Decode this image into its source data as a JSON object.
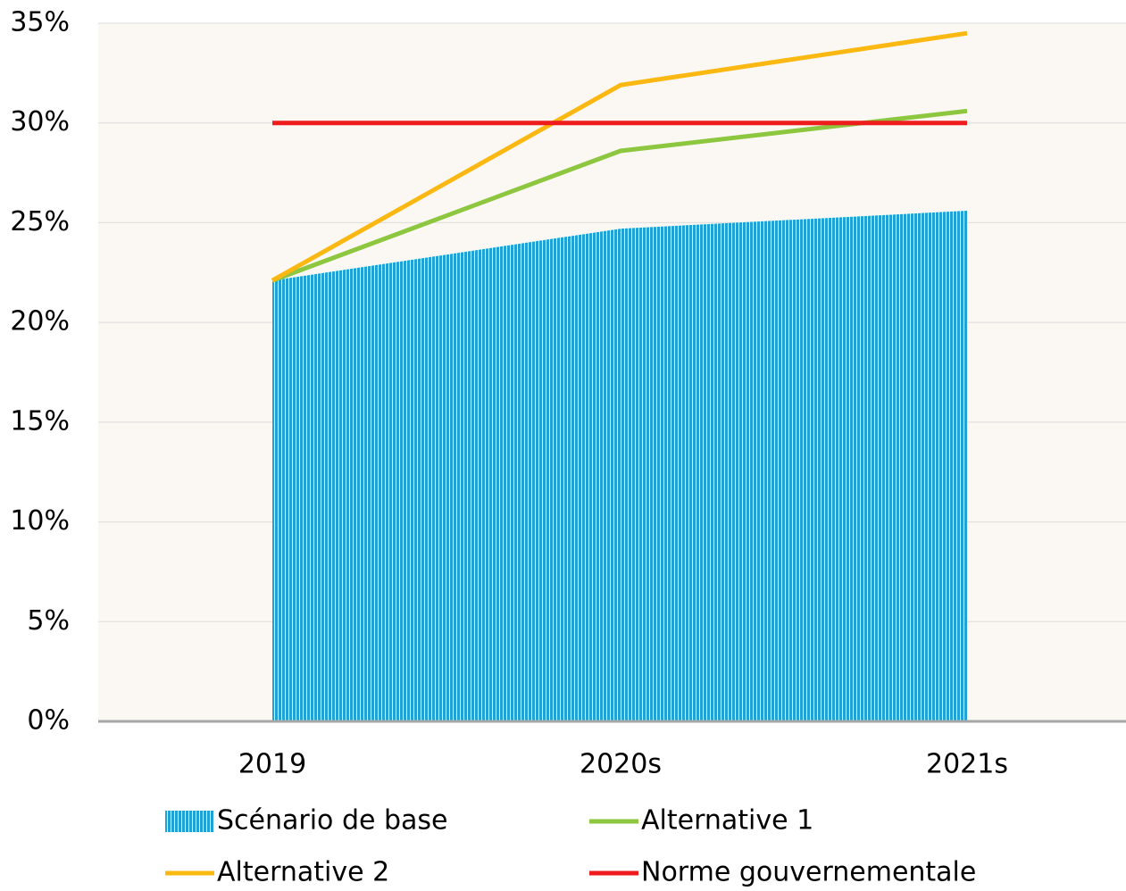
{
  "chart_data": {
    "type": "line",
    "categories": [
      "2019",
      "2020s",
      "2021s"
    ],
    "series": [
      {
        "name": "Scénario de base",
        "kind": "area",
        "color": "#1fa3d6",
        "values": [
          22.1,
          24.7,
          25.6
        ]
      },
      {
        "name": "Alternative 1",
        "kind": "line",
        "color": "#8dc63f",
        "values": [
          22.1,
          28.6,
          30.6
        ]
      },
      {
        "name": "Alternative 2",
        "kind": "line",
        "color": "#fbb812",
        "values": [
          22.1,
          31.9,
          34.5
        ]
      },
      {
        "name": "Norme gouvernementale",
        "kind": "line",
        "color": "#ee1c1c",
        "values": [
          30,
          30,
          30
        ]
      }
    ],
    "ylim": [
      0,
      35
    ],
    "yticks": [
      {
        "value": 0,
        "label": "0%"
      },
      {
        "value": 5,
        "label": "5%"
      },
      {
        "value": 10,
        "label": "10%"
      },
      {
        "value": 15,
        "label": "15%"
      },
      {
        "value": 20,
        "label": "20%"
      },
      {
        "value": 25,
        "label": "25%"
      },
      {
        "value": 30,
        "label": "30%"
      },
      {
        "value": 35,
        "label": "35%"
      }
    ],
    "grid": true
  }
}
